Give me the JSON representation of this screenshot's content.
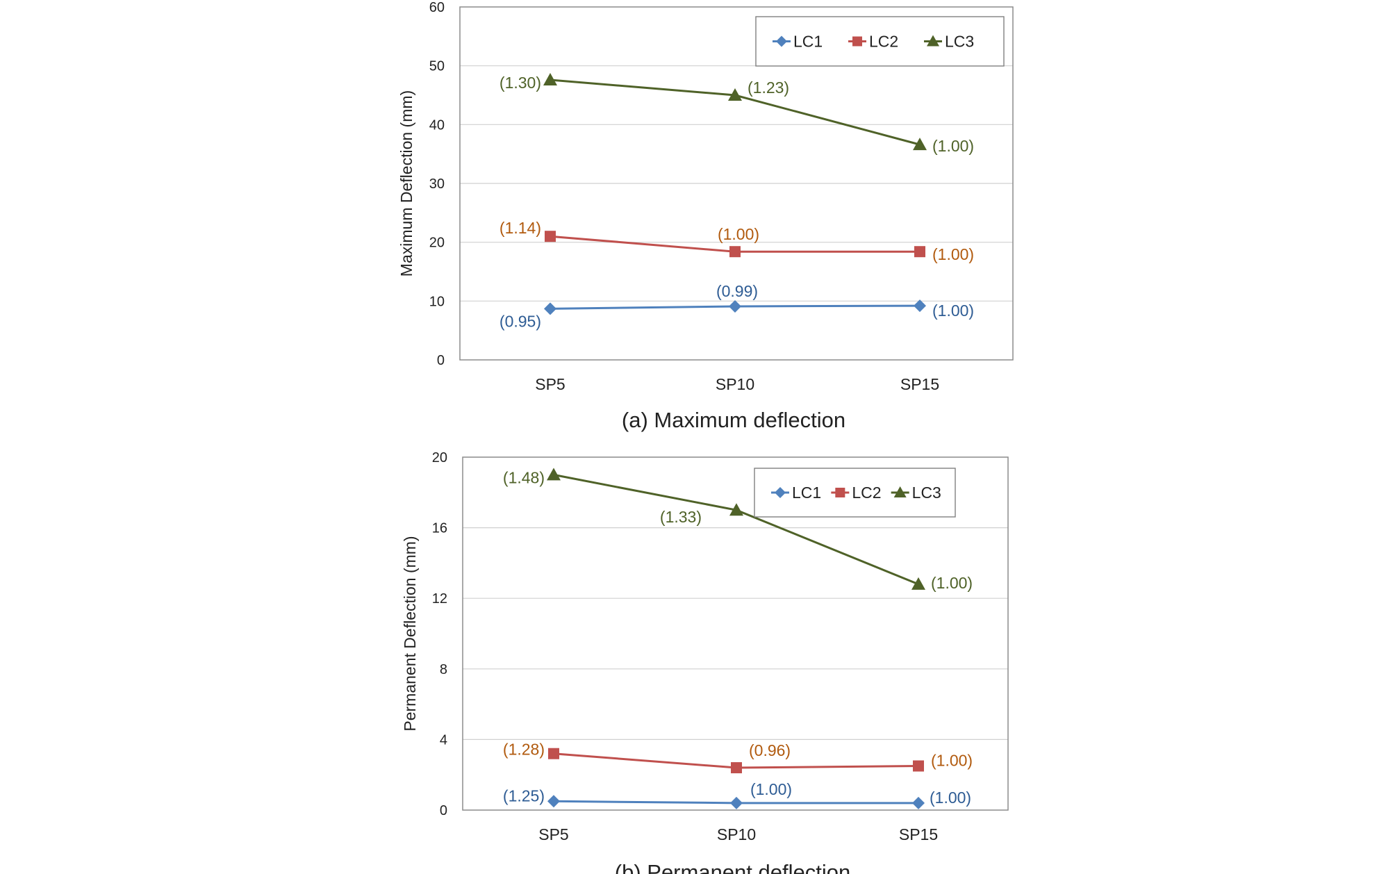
{
  "chart_data": [
    {
      "type": "line",
      "caption": "(a) Maximum deflection",
      "categories": [
        "SP5",
        "SP10",
        "SP15"
      ],
      "ylabel": "Maximum Deflection (mm)",
      "ylim": [
        0,
        60
      ],
      "yticks": [
        0,
        10,
        20,
        30,
        40,
        50,
        60
      ],
      "legend": "top-right",
      "series": [
        {
          "name": "LC1",
          "marker": "diamond",
          "color": "#4f81bd",
          "label_color": "#2e5c94",
          "values": [
            8.7,
            9.1,
            9.2
          ],
          "labels": [
            "(0.95)",
            "(0.99)",
            "(1.00)"
          ]
        },
        {
          "name": "LC2",
          "marker": "square",
          "color": "#c0504d",
          "label_color": "#b15a0e",
          "values": [
            21.0,
            18.4,
            18.4
          ],
          "labels": [
            "(1.14)",
            "(1.00)",
            "(1.00)"
          ]
        },
        {
          "name": "LC3",
          "marker": "triangle",
          "color": "#4f6228",
          "label_color": "#4f6228",
          "values": [
            47.6,
            45.0,
            36.6
          ],
          "labels": [
            "(1.30)",
            "(1.23)",
            "(1.00)"
          ]
        }
      ]
    },
    {
      "type": "line",
      "caption": "(b) Permanent deflection",
      "categories": [
        "SP5",
        "SP10",
        "SP15"
      ],
      "ylabel": "Permanent Deflection (mm)",
      "ylim": [
        0,
        20
      ],
      "yticks": [
        0,
        4,
        8,
        12,
        16,
        20
      ],
      "legend": "top-right",
      "series": [
        {
          "name": "LC1",
          "marker": "diamond",
          "color": "#4f81bd",
          "label_color": "#2e5c94",
          "values": [
            0.5,
            0.4,
            0.4
          ],
          "labels": [
            "(1.25)",
            "(1.00)",
            "(1.00)"
          ]
        },
        {
          "name": "LC2",
          "marker": "square",
          "color": "#c0504d",
          "label_color": "#b15a0e",
          "values": [
            3.2,
            2.4,
            2.5
          ],
          "labels": [
            "(1.28)",
            "(0.96)",
            "(1.00)"
          ]
        },
        {
          "name": "LC3",
          "marker": "triangle",
          "color": "#4f6228",
          "label_color": "#4f6228",
          "values": [
            19.0,
            17.0,
            12.8
          ],
          "labels": [
            "(1.48)",
            "(1.33)",
            "(1.00)"
          ]
        }
      ]
    }
  ]
}
